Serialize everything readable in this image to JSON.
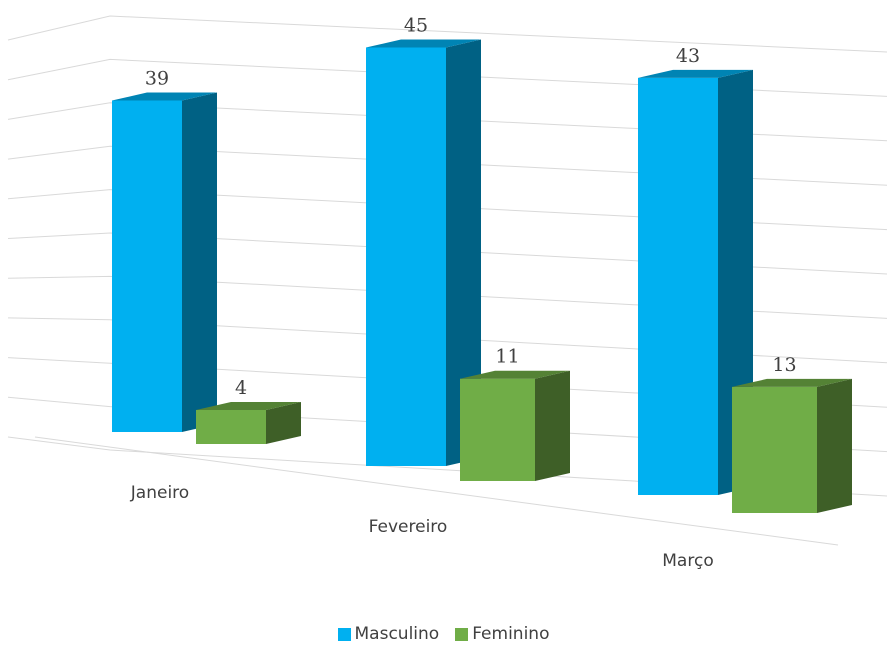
{
  "chart_data": {
    "type": "bar",
    "categories": [
      "Janeiro",
      "Fevereiro",
      "Março"
    ],
    "series": [
      {
        "name": "Masculino",
        "values": [
          39,
          45,
          43
        ],
        "color": "#00B0F0"
      },
      {
        "name": "Feminino",
        "values": [
          4,
          11,
          13
        ],
        "color": "#70AD47"
      }
    ],
    "ylim": [
      0,
      50
    ],
    "grid": true,
    "legend_position": "bottom",
    "style": "3d-clustered-column"
  }
}
